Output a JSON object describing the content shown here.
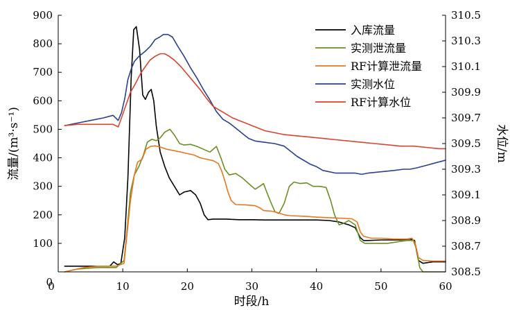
{
  "chart_data": {
    "type": "line",
    "xlabel": "时段/h",
    "ylabel_left": "流量/(m³·s⁻¹)",
    "ylabel_right": "水位/m",
    "xlim": [
      0,
      60
    ],
    "ylim_left": [
      0,
      900
    ],
    "ylim_right": [
      308.5,
      310.5
    ],
    "x_ticks": [
      "0",
      "10",
      "20",
      "30",
      "40",
      "50",
      "60"
    ],
    "y_left_ticks": [
      "0",
      "100",
      "200",
      "300",
      "400",
      "500",
      "600",
      "700",
      "800",
      "900"
    ],
    "y_right_ticks": [
      "308.5",
      "308.7",
      "308.9",
      "309.1",
      "309.3",
      "309.5",
      "309.7",
      "309.9",
      "310.1",
      "310.3",
      "310.5"
    ],
    "grid": false,
    "legend_position": "top-right",
    "series": [
      {
        "name": "入库流量",
        "axis": "left",
        "color": "#000000",
        "points": [
          [
            1,
            20
          ],
          [
            5,
            20
          ],
          [
            8,
            20
          ],
          [
            8.6,
            35
          ],
          [
            9.2,
            25
          ],
          [
            9.7,
            30
          ],
          [
            10.3,
            120
          ],
          [
            10.8,
            330
          ],
          [
            11.3,
            680
          ],
          [
            11.7,
            850
          ],
          [
            12.1,
            860
          ],
          [
            12.6,
            780
          ],
          [
            13.1,
            620
          ],
          [
            13.5,
            605
          ],
          [
            14,
            630
          ],
          [
            14.4,
            640
          ],
          [
            14.8,
            600
          ],
          [
            15.2,
            510
          ],
          [
            15.8,
            420
          ],
          [
            16.5,
            370
          ],
          [
            17.2,
            330
          ],
          [
            18,
            300
          ],
          [
            18.8,
            270
          ],
          [
            19.5,
            280
          ],
          [
            20.5,
            285
          ],
          [
            21.3,
            270
          ],
          [
            22,
            240
          ],
          [
            22.6,
            200
          ],
          [
            23.2,
            183
          ],
          [
            24,
            185
          ],
          [
            26,
            185
          ],
          [
            28,
            183
          ],
          [
            30,
            183
          ],
          [
            32,
            182
          ],
          [
            35,
            182
          ],
          [
            38,
            182
          ],
          [
            40,
            182
          ],
          [
            42,
            180
          ],
          [
            43.5,
            175
          ],
          [
            45,
            165
          ],
          [
            46,
            155
          ],
          [
            46.8,
            120
          ],
          [
            47.3,
            110
          ],
          [
            48,
            110
          ],
          [
            50,
            112
          ],
          [
            53,
            112
          ],
          [
            54.5,
            115
          ],
          [
            55.2,
            110
          ],
          [
            55.8,
            40
          ],
          [
            56.5,
            30
          ],
          [
            58,
            35
          ],
          [
            60,
            35
          ]
        ]
      },
      {
        "name": "实测泄流量",
        "axis": "left",
        "color": "#6b8e23",
        "points": [
          [
            1,
            0
          ],
          [
            3,
            10
          ],
          [
            6,
            15
          ],
          [
            9,
            15
          ],
          [
            10.2,
            40
          ],
          [
            10.6,
            130
          ],
          [
            11.2,
            280
          ],
          [
            11.8,
            340
          ],
          [
            12.5,
            370
          ],
          [
            13.2,
            410
          ],
          [
            13.8,
            455
          ],
          [
            14.5,
            465
          ],
          [
            15.2,
            460
          ],
          [
            15.8,
            470
          ],
          [
            16.5,
            490
          ],
          [
            17.3,
            500
          ],
          [
            18,
            480
          ],
          [
            18.8,
            450
          ],
          [
            19.5,
            445
          ],
          [
            20.5,
            447
          ],
          [
            21.5,
            440
          ],
          [
            22.5,
            430
          ],
          [
            23.5,
            420
          ],
          [
            24.5,
            440
          ],
          [
            25.2,
            400
          ],
          [
            25.8,
            360
          ],
          [
            26.5,
            340
          ],
          [
            27.5,
            345
          ],
          [
            28.5,
            330
          ],
          [
            29.5,
            310
          ],
          [
            30.5,
            290
          ],
          [
            31.2,
            300
          ],
          [
            31.8,
            310
          ],
          [
            32.3,
            280
          ],
          [
            33,
            240
          ],
          [
            33.6,
            210
          ],
          [
            34.2,
            205
          ],
          [
            35,
            240
          ],
          [
            35.8,
            300
          ],
          [
            36.5,
            315
          ],
          [
            37.5,
            310
          ],
          [
            38.5,
            312
          ],
          [
            39.5,
            300
          ],
          [
            40.5,
            300
          ],
          [
            41.5,
            296
          ],
          [
            42.2,
            250
          ],
          [
            42.8,
            200
          ],
          [
            43.5,
            165
          ],
          [
            44.2,
            170
          ],
          [
            45,
            180
          ],
          [
            46,
            165
          ],
          [
            46.8,
            110
          ],
          [
            47.5,
            100
          ],
          [
            49,
            100
          ],
          [
            51,
            100
          ],
          [
            52.5,
            105
          ],
          [
            54,
            110
          ],
          [
            55,
            110
          ],
          [
            55.5,
            80
          ],
          [
            56,
            15
          ],
          [
            56.5,
            0
          ],
          [
            57,
            0
          ],
          [
            60,
            0
          ]
        ]
      },
      {
        "name": "RF计算泄流量",
        "axis": "left",
        "color": "#e8761e",
        "points": [
          [
            1,
            0
          ],
          [
            2,
            5
          ],
          [
            4,
            15
          ],
          [
            6,
            20
          ],
          [
            9,
            20
          ],
          [
            10.2,
            30
          ],
          [
            10.6,
            120
          ],
          [
            11.2,
            250
          ],
          [
            11.8,
            340
          ],
          [
            12.3,
            385
          ],
          [
            13,
            395
          ],
          [
            13.6,
            430
          ],
          [
            14.3,
            440
          ],
          [
            15,
            442
          ],
          [
            15.8,
            438
          ],
          [
            16.8,
            430
          ],
          [
            18,
            425
          ],
          [
            19,
            420
          ],
          [
            20,
            415
          ],
          [
            21,
            410
          ],
          [
            22,
            400
          ],
          [
            23,
            395
          ],
          [
            24,
            390
          ],
          [
            24.8,
            380
          ],
          [
            25.3,
            355
          ],
          [
            25.8,
            320
          ],
          [
            26.3,
            280
          ],
          [
            26.8,
            250
          ],
          [
            27.5,
            236
          ],
          [
            29,
            235
          ],
          [
            30.5,
            232
          ],
          [
            31.2,
            225
          ],
          [
            31.8,
            215
          ],
          [
            33,
            213
          ],
          [
            34,
            208
          ],
          [
            35,
            200
          ],
          [
            36,
            197
          ],
          [
            38,
            195
          ],
          [
            40,
            192
          ],
          [
            42,
            190
          ],
          [
            44,
            188
          ],
          [
            45.5,
            186
          ],
          [
            46.3,
            175
          ],
          [
            46.8,
            140
          ],
          [
            47.3,
            125
          ],
          [
            48.5,
            118
          ],
          [
            50,
            118
          ],
          [
            52,
            115
          ],
          [
            54,
            115
          ],
          [
            54.8,
            118
          ],
          [
            55.3,
            100
          ],
          [
            55.8,
            50
          ],
          [
            56.5,
            40
          ],
          [
            58,
            38
          ],
          [
            60,
            38
          ]
        ]
      },
      {
        "name": "实测水位",
        "axis": "right",
        "color": "#2a3f8f",
        "points": [
          [
            1,
            309.64
          ],
          [
            3,
            309.66
          ],
          [
            5,
            309.68
          ],
          [
            7,
            309.7
          ],
          [
            8.5,
            309.72
          ],
          [
            9.3,
            309.68
          ],
          [
            9.8,
            309.74
          ],
          [
            10.3,
            309.85
          ],
          [
            10.8,
            310.0
          ],
          [
            11.3,
            310.08
          ],
          [
            11.8,
            310.14
          ],
          [
            12.5,
            310.18
          ],
          [
            13.5,
            310.22
          ],
          [
            14.3,
            310.26
          ],
          [
            15,
            310.31
          ],
          [
            15.7,
            310.33
          ],
          [
            16.3,
            310.35
          ],
          [
            17,
            310.35
          ],
          [
            17.7,
            310.33
          ],
          [
            18.5,
            310.26
          ],
          [
            19.5,
            310.18
          ],
          [
            20.5,
            310.09
          ],
          [
            21.5,
            310.01
          ],
          [
            22.5,
            309.92
          ],
          [
            23.5,
            309.84
          ],
          [
            24.5,
            309.75
          ],
          [
            25.5,
            309.69
          ],
          [
            26.5,
            309.66
          ],
          [
            27.5,
            309.62
          ],
          [
            28.5,
            309.58
          ],
          [
            29.5,
            309.54
          ],
          [
            30.5,
            309.52
          ],
          [
            32,
            309.51
          ],
          [
            33.5,
            309.5
          ],
          [
            35,
            309.48
          ],
          [
            36,
            309.44
          ],
          [
            37,
            309.4
          ],
          [
            38,
            309.37
          ],
          [
            39,
            309.34
          ],
          [
            40,
            309.32
          ],
          [
            41,
            309.29
          ],
          [
            42,
            309.28
          ],
          [
            43,
            309.27
          ],
          [
            45,
            309.27
          ],
          [
            46,
            309.27
          ],
          [
            47,
            309.26
          ],
          [
            48,
            309.27
          ],
          [
            50,
            309.28
          ],
          [
            52,
            309.29
          ],
          [
            53.5,
            309.3
          ],
          [
            54.5,
            309.3
          ],
          [
            55.5,
            309.31
          ],
          [
            57,
            309.33
          ],
          [
            58.5,
            309.35
          ],
          [
            60,
            309.37
          ]
        ]
      },
      {
        "name": "RF计算水位",
        "axis": "right",
        "color": "#d9432b",
        "points": [
          [
            1,
            309.64
          ],
          [
            3,
            309.65
          ],
          [
            5,
            309.65
          ],
          [
            7,
            309.65
          ],
          [
            8.5,
            309.65
          ],
          [
            9.3,
            309.63
          ],
          [
            9.8,
            309.7
          ],
          [
            10.5,
            309.8
          ],
          [
            11.2,
            309.9
          ],
          [
            12,
            309.97
          ],
          [
            12.8,
            310.05
          ],
          [
            13.5,
            310.1
          ],
          [
            14.2,
            310.15
          ],
          [
            15,
            310.18
          ],
          [
            15.8,
            310.2
          ],
          [
            16.5,
            310.2
          ],
          [
            17.2,
            310.18
          ],
          [
            18,
            310.15
          ],
          [
            19,
            310.1
          ],
          [
            20,
            310.04
          ],
          [
            21,
            309.98
          ],
          [
            22,
            309.92
          ],
          [
            23,
            309.85
          ],
          [
            24,
            309.79
          ],
          [
            25,
            309.76
          ],
          [
            26,
            309.73
          ],
          [
            27,
            309.7
          ],
          [
            28,
            309.68
          ],
          [
            29,
            309.66
          ],
          [
            30,
            309.64
          ],
          [
            31,
            309.62
          ],
          [
            32,
            309.6
          ],
          [
            33,
            309.59
          ],
          [
            35,
            309.57
          ],
          [
            37,
            309.56
          ],
          [
            39,
            309.55
          ],
          [
            41,
            309.54
          ],
          [
            43,
            309.53
          ],
          [
            45,
            309.52
          ],
          [
            47,
            309.51
          ],
          [
            49,
            309.5
          ],
          [
            51,
            309.49
          ],
          [
            53,
            309.48
          ],
          [
            55,
            309.48
          ],
          [
            57,
            309.47
          ],
          [
            59,
            309.46
          ],
          [
            60,
            309.46
          ]
        ]
      }
    ]
  }
}
